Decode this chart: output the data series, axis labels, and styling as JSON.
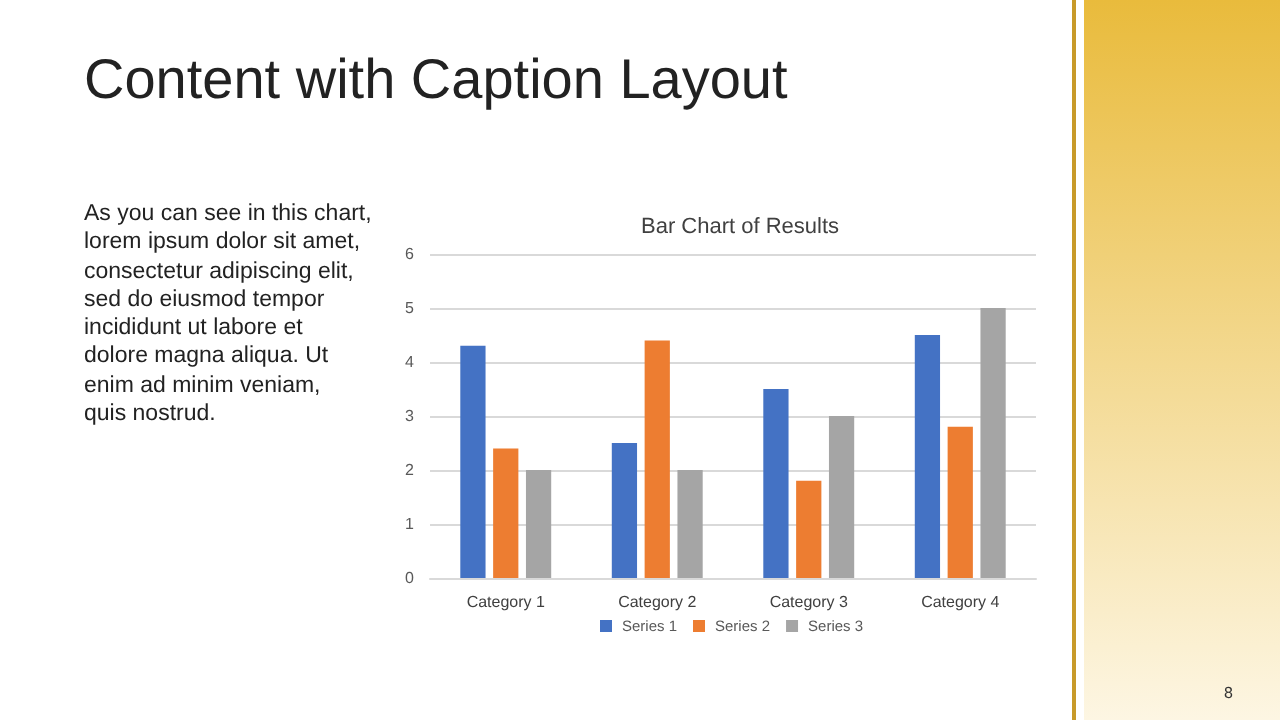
{
  "chart_data": {
    "type": "bar",
    "title": "Bar Chart of Results",
    "annotations": [
      "Content with Caption Layout",
      "As you can see in this chart,\nlorem ipsum dolor sit amet,\nconsectetur adipiscing elit,\nsed do eiusmod tempor\nincididunt ut labore et\ndolore magna aliqua. Ut\nenim ad minim veniam,\nquis nostrud.",
      "8"
    ],
    "categories": [
      "Category 1",
      "Category 2",
      "Category 3",
      "Category 4"
    ],
    "series": [
      {
        "name": "Series 1",
        "color": "#4472c4",
        "values": [
          4.3,
          2.5,
          3.5,
          4.5
        ]
      },
      {
        "name": "Series 2",
        "color": "#ed7d31",
        "values": [
          2.4,
          4.4,
          1.8,
          2.8
        ]
      },
      {
        "name": "Series 3",
        "color": "#a5a5a5",
        "values": [
          2,
          2,
          3,
          5
        ]
      }
    ],
    "ylim": [
      0,
      6
    ],
    "yticks": [
      0,
      1,
      2,
      3,
      4,
      5,
      6
    ],
    "grid": "y",
    "legend": "bottom"
  }
}
